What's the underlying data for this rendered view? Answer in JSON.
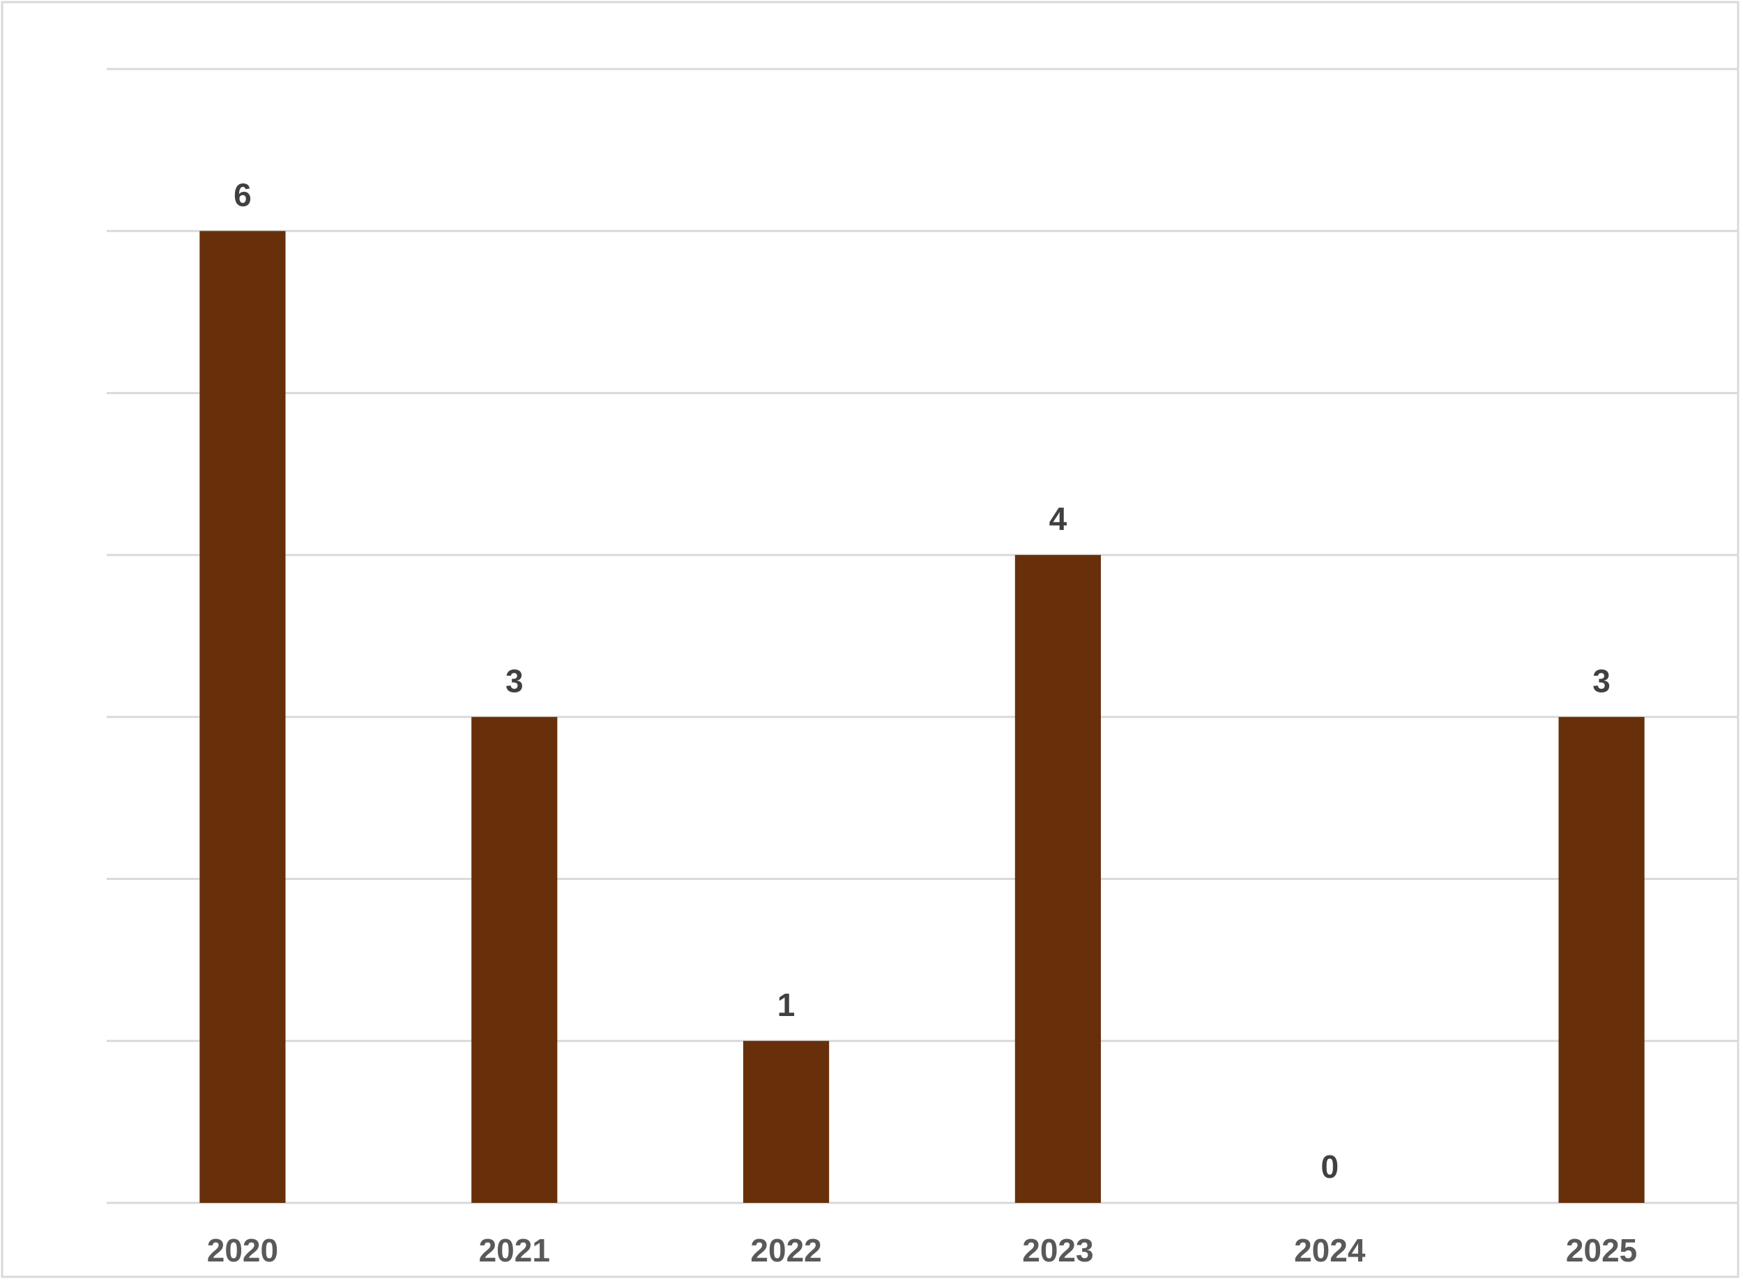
{
  "chart_data": {
    "type": "bar",
    "categories": [
      "2020",
      "2021",
      "2022",
      "2023",
      "2024",
      "2025"
    ],
    "values": [
      6,
      3,
      1,
      4,
      0,
      3
    ],
    "color": "#67300a",
    "ylim": [
      0,
      7
    ],
    "yticks": [
      0,
      1,
      2,
      3,
      4,
      5,
      6,
      7
    ],
    "grid": true,
    "data_labels": true
  }
}
